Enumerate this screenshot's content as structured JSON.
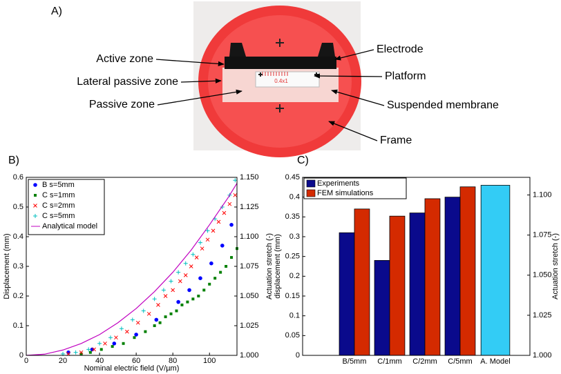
{
  "panel_labels": [
    "A)",
    "B)",
    "C)"
  ],
  "photo": {
    "annotations": [
      "Active zone",
      "Lateral passive zone",
      "Passive zone",
      "Electrode",
      "Platform",
      "Suspended membrane",
      "Frame"
    ],
    "platform_text": "0.4x1"
  },
  "chart_data": [
    {
      "type": "scatter",
      "xlabel": "Nominal electric field (V/µm)",
      "ylabel": "Displacement (mm)",
      "y2label": "Actuation stretch (-)",
      "xlim": [
        0,
        115
      ],
      "xticks": [
        0,
        20,
        40,
        60,
        80,
        100
      ],
      "ylim": [
        0,
        0.6
      ],
      "yticks": [
        0,
        0.1,
        0.2,
        0.3,
        0.4,
        0.5,
        0.6
      ],
      "y2lim": [
        1.0,
        1.15
      ],
      "y2ticks": [
        {
          "value": 1.0,
          "label": "1.000"
        },
        {
          "value": 1.025,
          "label": "1.025"
        },
        {
          "value": 1.05,
          "label": "1.050"
        },
        {
          "value": 1.075,
          "label": "1.075"
        },
        {
          "value": 1.1,
          "label": "1.100"
        },
        {
          "value": 1.125,
          "label": "1.125"
        },
        {
          "value": 1.15,
          "label": "1.150"
        }
      ],
      "legend": "upper left",
      "series": [
        {
          "name": "B s=5mm",
          "color": "#0000ff",
          "marker": "circle",
          "x": [
            23,
            36,
            48,
            60,
            71,
            83,
            89,
            95,
            101,
            107,
            112
          ],
          "values": [
            0.01,
            0.02,
            0.04,
            0.07,
            0.12,
            0.18,
            0.22,
            0.26,
            0.31,
            0.37,
            0.44
          ]
        },
        {
          "name": "C s=1mm",
          "color": "#008000",
          "marker": "square",
          "x": [
            30,
            35,
            41,
            47,
            53,
            59,
            65,
            70,
            73,
            76,
            79,
            82,
            85,
            88,
            91,
            94,
            97,
            100,
            103,
            106,
            109,
            112,
            115
          ],
          "values": [
            0.005,
            0.01,
            0.02,
            0.03,
            0.04,
            0.06,
            0.08,
            0.1,
            0.11,
            0.13,
            0.14,
            0.15,
            0.17,
            0.18,
            0.19,
            0.2,
            0.22,
            0.24,
            0.26,
            0.28,
            0.3,
            0.33,
            0.36
          ]
        },
        {
          "name": "C s=2mm",
          "color": "#ff0000",
          "marker": "x",
          "x": [
            23,
            30,
            37,
            43,
            49,
            55,
            61,
            67,
            72,
            76,
            80,
            84,
            87,
            90,
            93,
            96,
            99,
            102,
            105,
            108,
            111,
            114
          ],
          "values": [
            0.005,
            0.01,
            0.02,
            0.04,
            0.06,
            0.08,
            0.11,
            0.14,
            0.17,
            0.2,
            0.22,
            0.25,
            0.27,
            0.3,
            0.33,
            0.36,
            0.39,
            0.42,
            0.45,
            0.48,
            0.51,
            0.54
          ]
        },
        {
          "name": "C s=5mm",
          "color": "#00bfbf",
          "marker": "plus",
          "x": [
            20,
            27,
            34,
            40,
            46,
            52,
            58,
            64,
            70,
            75,
            79,
            83,
            87,
            91,
            95,
            99,
            103,
            107,
            111,
            114
          ],
          "values": [
            0.005,
            0.01,
            0.02,
            0.04,
            0.06,
            0.09,
            0.12,
            0.15,
            0.19,
            0.22,
            0.25,
            0.28,
            0.31,
            0.34,
            0.38,
            0.42,
            0.46,
            0.5,
            0.54,
            0.59
          ]
        },
        {
          "name": "Analytical model",
          "color": "#c000c0",
          "marker": "line",
          "x": [
            0,
            10,
            20,
            30,
            40,
            50,
            60,
            70,
            80,
            90,
            100,
            110,
            115
          ],
          "values": [
            0,
            0.004,
            0.018,
            0.04,
            0.07,
            0.11,
            0.158,
            0.215,
            0.28,
            0.355,
            0.44,
            0.53,
            0.58
          ]
        }
      ]
    },
    {
      "type": "bar",
      "ylabel": "displacement (mm)",
      "y2label": "Actuation stretch (-)",
      "categories": [
        "B/5mm",
        "C/1mm",
        "C/2mm",
        "C/5mm",
        "A. Model"
      ],
      "ylim": [
        0,
        0.45
      ],
      "yticks": [
        0,
        0.05,
        0.1,
        0.15,
        0.2,
        0.25,
        0.3,
        0.35,
        0.4,
        0.45
      ],
      "y2lim": [
        1.0,
        1.111
      ],
      "y2ticks": [
        {
          "value": 1.0,
          "label": "1.000"
        },
        {
          "value": 1.025,
          "label": "1.025"
        },
        {
          "value": 1.05,
          "label": "1.050"
        },
        {
          "value": 1.075,
          "label": "1.075"
        },
        {
          "value": 1.1,
          "label": "1.100"
        }
      ],
      "legend": "upper left",
      "series": [
        {
          "name": "Experiments",
          "color": "#0a0a8c",
          "values": [
            0.31,
            0.24,
            0.36,
            0.4,
            null
          ]
        },
        {
          "name": "FEM simulations",
          "color": "#d42a00",
          "values": [
            0.37,
            0.352,
            0.396,
            0.426,
            null
          ]
        }
      ],
      "model_values": [
        null,
        null,
        null,
        null,
        0.43
      ],
      "model_color": "#33ccf5"
    }
  ]
}
